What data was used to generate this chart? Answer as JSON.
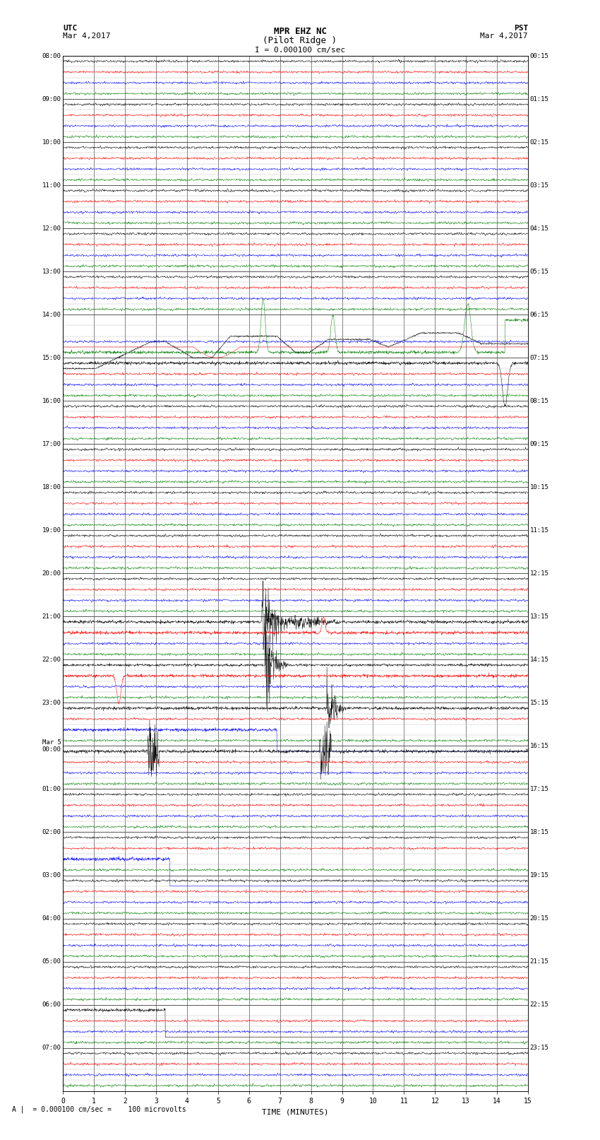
{
  "title_line1": "MPR EHZ NC",
  "title_line2": "(Pilot Ridge )",
  "scale_label": "I = 0.000100 cm/sec",
  "utc_label": "UTC\nMar 4,2017",
  "pst_label": "PST\nMar 4,2017",
  "bottom_label": "A |  = 0.000100 cm/sec =    100 microvolts",
  "xlabel": "TIME (MINUTES)",
  "left_times_labeled": [
    "08:00",
    "09:00",
    "10:00",
    "11:00",
    "12:00",
    "13:00",
    "14:00",
    "15:00",
    "16:00",
    "17:00",
    "18:00",
    "19:00",
    "20:00",
    "21:00",
    "22:00",
    "23:00",
    "Mar 5\n00:00",
    "01:00",
    "02:00",
    "03:00",
    "04:00",
    "05:00",
    "06:00",
    "07:00"
  ],
  "right_times_labeled": [
    "00:15",
    "01:15",
    "02:15",
    "03:15",
    "04:15",
    "05:15",
    "06:15",
    "07:15",
    "08:15",
    "09:15",
    "10:15",
    "11:15",
    "12:15",
    "13:15",
    "14:15",
    "15:15",
    "16:15",
    "17:15",
    "18:15",
    "19:15",
    "20:15",
    "21:15",
    "22:15",
    "23:15"
  ],
  "trace_colors": [
    "black",
    "red",
    "blue",
    "green"
  ],
  "n_rows": 96,
  "n_cols": 1800,
  "noise_amplitude": 0.07,
  "background_color": "white",
  "grid_color": "#aaaaaa",
  "major_grid_color": "#555555"
}
